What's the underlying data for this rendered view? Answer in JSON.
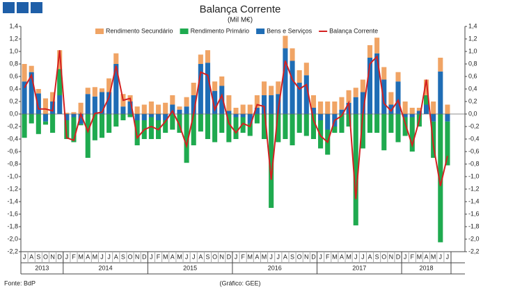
{
  "chart_data": {
    "type": "stacked_bar_line",
    "title": "Balança Corrente",
    "subtitle": "(Mil M€)",
    "source": "Fonte: BdP",
    "credit": "(Gráfico: GEE)",
    "categories": [
      "J",
      "A",
      "S",
      "O",
      "N",
      "D",
      "J",
      "F",
      "M",
      "A",
      "M",
      "J",
      "J",
      "A",
      "S",
      "O",
      "N",
      "D",
      "J",
      "F",
      "M",
      "A",
      "M",
      "J",
      "J",
      "A",
      "S",
      "O",
      "N",
      "D",
      "J",
      "F",
      "M",
      "A",
      "M",
      "J",
      "J",
      "A",
      "S",
      "O",
      "N",
      "D",
      "J",
      "F",
      "M",
      "A",
      "M",
      "J",
      "J",
      "A",
      "S",
      "O",
      "N",
      "D",
      "J",
      "F",
      "M",
      "A",
      "M",
      "J",
      "J"
    ],
    "years": [
      "2013",
      "2014",
      "2015",
      "2016",
      "2017",
      "2018"
    ],
    "series": [
      {
        "name": "Rendimento Secundário",
        "color": "#f0a465",
        "values": [
          0.28,
          0.1,
          0.07,
          0.25,
          0.15,
          0.3,
          0.02,
          0.03,
          0.18,
          0.1,
          0.15,
          0.06,
          0.22,
          0.17,
          0.2,
          0.1,
          0.12,
          0.15,
          0.2,
          0.15,
          0.18,
          0.15,
          0.05,
          0.15,
          0.2,
          0.15,
          0.2,
          0.15,
          0.15,
          0.25,
          0.1,
          0.15,
          0.15,
          0.2,
          0.22,
          0.15,
          0.2,
          0.2,
          0.2,
          0.2,
          0.2,
          0.2,
          0.2,
          0.2,
          0.2,
          0.2,
          0.2,
          0.15,
          0.2,
          0.2,
          0.25,
          0.2,
          0.2,
          0.15,
          0.2,
          0.1,
          0.05,
          0.25,
          0.2,
          0.22,
          0.15
        ]
      },
      {
        "name": "Rendimento Primário",
        "color": "#1faa4f",
        "values": [
          -0.38,
          -0.15,
          -0.32,
          -0.05,
          -0.3,
          0.42,
          -0.3,
          -0.4,
          -0.02,
          -0.7,
          -0.42,
          -0.38,
          -0.3,
          -0.2,
          -0.1,
          -0.05,
          -0.4,
          -0.3,
          -0.35,
          -0.3,
          -0.2,
          -0.25,
          -0.3,
          -0.78,
          -0.5,
          -0.28,
          -0.4,
          -0.45,
          -0.3,
          -0.45,
          -0.35,
          -0.25,
          -0.2,
          -0.15,
          -0.4,
          -1.5,
          -0.45,
          -0.4,
          -0.5,
          -0.3,
          -0.35,
          -0.4,
          -0.45,
          -0.4,
          -0.1,
          -0.3,
          -0.2,
          -1.78,
          -0.55,
          -0.3,
          -0.3,
          -0.58,
          -0.3,
          -0.45,
          -0.3,
          -0.55,
          -0.2,
          0.15,
          -0.58,
          -2.05,
          -0.7
        ]
      },
      {
        "name": "Bens e Serviços",
        "color": "#1f6db5",
        "values": [
          0.52,
          0.67,
          0.33,
          -0.12,
          0.2,
          0.3,
          -0.1,
          -0.05,
          -0.16,
          0.32,
          0.28,
          0.35,
          0.35,
          0.8,
          0.12,
          0.2,
          -0.1,
          -0.1,
          -0.05,
          -0.1,
          -0.1,
          0.15,
          0.07,
          0.12,
          0.3,
          0.8,
          0.82,
          0.37,
          0.45,
          0.05,
          -0.05,
          -0.05,
          -0.15,
          0.1,
          0.3,
          0.3,
          0.32,
          1.05,
          0.85,
          0.5,
          0.62,
          0.1,
          -0.1,
          -0.25,
          -0.2,
          0.07,
          0.18,
          0.27,
          0.35,
          0.9,
          0.97,
          0.55,
          0.15,
          0.52,
          -0.05,
          -0.05,
          0.05,
          0.15,
          -0.12,
          0.68,
          -0.12
        ]
      },
      {
        "name": "Balança Corrente",
        "color": "#d42020",
        "line": true,
        "values": [
          0.42,
          0.62,
          0.08,
          0.08,
          0.05,
          1.02,
          -0.38,
          -0.42,
          0,
          -0.28,
          0.01,
          0.03,
          0.27,
          0.77,
          0.22,
          0.25,
          -0.38,
          -0.25,
          -0.2,
          -0.25,
          -0.12,
          0.05,
          -0.18,
          -0.51,
          0,
          0.67,
          0.62,
          0.07,
          0.3,
          -0.15,
          -0.3,
          -0.15,
          -0.2,
          0.15,
          0.12,
          -1.05,
          0.07,
          0.85,
          0.55,
          0.4,
          0.47,
          -0.1,
          -0.35,
          -0.45,
          -0.1,
          -0.03,
          0.18,
          -1.36,
          0,
          0.8,
          0.92,
          0.17,
          0.05,
          0.22,
          -0.15,
          -0.5,
          -0.1,
          0.55,
          -0.5,
          -1.15,
          -0.67
        ]
      }
    ],
    "ylim": [
      -2.2,
      1.4
    ],
    "yticks": [
      {
        "value": -2.2,
        "label": "-2,2"
      },
      {
        "value": -2.0,
        "label": "-2,0"
      },
      {
        "value": -1.8,
        "label": "-1,8"
      },
      {
        "value": -1.6,
        "label": "-1,6"
      },
      {
        "value": -1.4,
        "label": "-1,4"
      },
      {
        "value": -1.2,
        "label": "-1,2"
      },
      {
        "value": -1.0,
        "label": "-1,0"
      },
      {
        "value": -0.8,
        "label": "-0,8"
      },
      {
        "value": -0.6,
        "label": "-0,6"
      },
      {
        "value": -0.4,
        "label": "-0,4"
      },
      {
        "value": -0.2,
        "label": "-0,2"
      },
      {
        "value": 0,
        "label": "0,0"
      },
      {
        "value": 0.2,
        "label": "0,2"
      },
      {
        "value": 0.4,
        "label": "0,4"
      },
      {
        "value": 0.6,
        "label": "0,6"
      },
      {
        "value": 0.8,
        "label": "0,8"
      },
      {
        "value": 1.0,
        "label": "1,0"
      },
      {
        "value": 1.2,
        "label": "1,2"
      },
      {
        "value": 1.4,
        "label": "1,4"
      }
    ],
    "y2lim": [
      -2.2,
      1.4
    ],
    "y2ticks": [
      {
        "value": -2.2,
        "label": "-2,2"
      },
      {
        "value": -2.0,
        "label": "-2,0"
      },
      {
        "value": -1.8,
        "label": "-1,8"
      },
      {
        "value": -1.6,
        "label": "-1,6"
      },
      {
        "value": -1.4,
        "label": "-1,4"
      },
      {
        "value": -1.2,
        "label": "-1,2"
      },
      {
        "value": -1.0,
        "label": "-1,0"
      },
      {
        "value": -0.8,
        "label": "-0,8"
      },
      {
        "value": -0.6,
        "label": "-0,6"
      },
      {
        "value": -0.4,
        "label": "-0,4"
      },
      {
        "value": -0.2,
        "label": "-0,2"
      },
      {
        "value": 0,
        "label": "0,0"
      },
      {
        "value": 0.2,
        "label": "0,2"
      },
      {
        "value": 0.4,
        "label": "0,4"
      },
      {
        "value": 0.6,
        "label": "0,6"
      },
      {
        "value": 0.8,
        "label": "0,8"
      },
      {
        "value": 1.0,
        "label": "1,0"
      },
      {
        "value": 1.2,
        "label": "1,2"
      },
      {
        "value": 1.4,
        "label": "1,4"
      }
    ]
  }
}
